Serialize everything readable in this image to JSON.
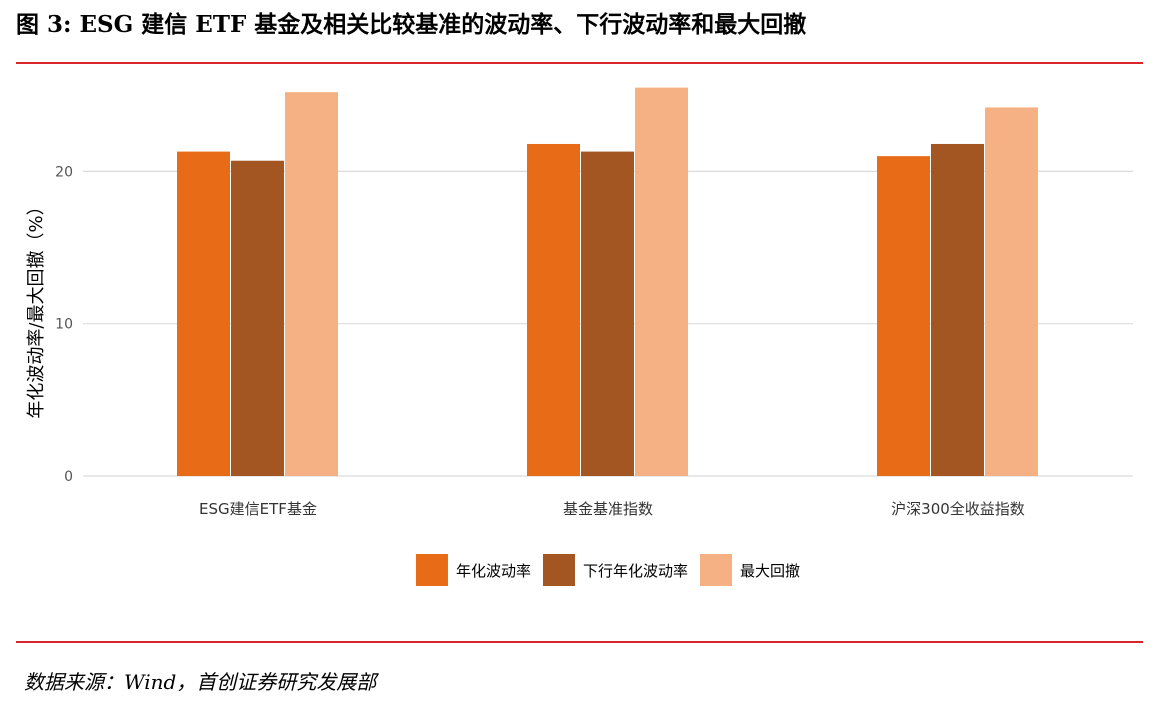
{
  "figure_title": "图 3: ESG 建信 ETF 基金及相关比较基准的波动率、下行波动率和最大回撤",
  "source": "数据来源：Wind，首创证券研究发展部",
  "chart_data": {
    "type": "bar",
    "title": "",
    "xlabel": "",
    "ylabel": "年化波动率/最大回撤（%）",
    "ylim": [
      0,
      26
    ],
    "yticks": [
      0,
      10,
      20
    ],
    "grid": true,
    "legend_position": "bottom",
    "categories": [
      "ESG建信ETF基金",
      "基金基准指数",
      "沪深300全收益指数"
    ],
    "series": [
      {
        "name": "年化波动率",
        "color": "#e86c17",
        "values": [
          21.3,
          21.8,
          21.0
        ]
      },
      {
        "name": "下行年化波动率",
        "color": "#a35522",
        "values": [
          20.7,
          21.3,
          21.8
        ]
      },
      {
        "name": "最大回撤",
        "color": "#f5b184",
        "values": [
          25.2,
          25.5,
          24.2
        ]
      }
    ]
  }
}
